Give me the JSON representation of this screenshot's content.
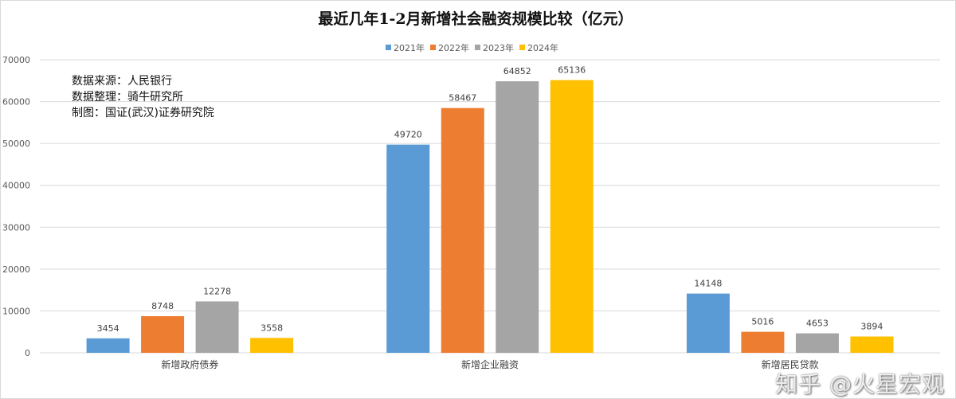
{
  "chart_data": {
    "type": "bar",
    "title": "最近几年1-2月新增社会融资规模比较（亿元）",
    "categories": [
      "新增政府债券",
      "新增企业融资",
      "新增居民贷款"
    ],
    "series": [
      {
        "name": "2021年",
        "color": "#5b9bd5",
        "values": [
          3454,
          49720,
          14148
        ]
      },
      {
        "name": "2022年",
        "color": "#ed7d31",
        "values": [
          8748,
          58467,
          5016
        ]
      },
      {
        "name": "2023年",
        "color": "#a5a5a5",
        "values": [
          12278,
          64852,
          4653
        ]
      },
      {
        "name": "2024年",
        "color": "#ffc000",
        "values": [
          3558,
          65136,
          3894
        ]
      }
    ],
    "ylim": [
      0,
      70000
    ],
    "yticks": [
      "0",
      "10000",
      "20000",
      "30000",
      "40000",
      "50000",
      "60000",
      "70000"
    ],
    "grid": true,
    "legend": "top-center",
    "xlabel": "",
    "ylabel": ""
  },
  "notes": [
    "数据来源：人民银行",
    "数据整理：骑牛研究所",
    "制图：国证(武汉)证券研究院"
  ],
  "watermark": "知乎 @火星宏观"
}
